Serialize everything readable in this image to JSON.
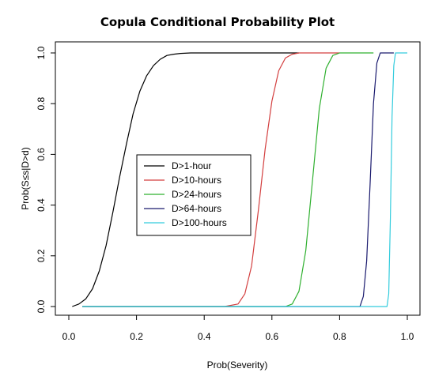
{
  "chart_data": {
    "type": "line",
    "title": "Copula Conditional Probability Plot",
    "xlabel": "Prob(Severity)",
    "ylabel": "Prob(S≤s|D>d)",
    "xlim": [
      0,
      1
    ],
    "ylim": [
      0,
      1
    ],
    "xticks": [
      "0.0",
      "0.2",
      "0.4",
      "0.6",
      "0.8",
      "1.0"
    ],
    "yticks": [
      "0.0",
      "0.2",
      "0.4",
      "0.6",
      "0.8",
      "1.0"
    ],
    "legend_position": "center-left",
    "series": [
      {
        "name": "D>1-hour",
        "color": "#000000",
        "x": [
          0.01,
          0.03,
          0.05,
          0.07,
          0.09,
          0.11,
          0.13,
          0.15,
          0.17,
          0.19,
          0.21,
          0.23,
          0.25,
          0.27,
          0.29,
          0.31,
          0.33,
          0.36,
          0.4,
          0.5,
          0.68
        ],
        "y": [
          0.0,
          0.01,
          0.03,
          0.07,
          0.14,
          0.24,
          0.37,
          0.51,
          0.64,
          0.76,
          0.85,
          0.91,
          0.95,
          0.975,
          0.99,
          0.995,
          0.998,
          1.0,
          1.0,
          1.0,
          1.0
        ]
      },
      {
        "name": "D>10-hours",
        "color": "#d33f3f",
        "x": [
          0.04,
          0.46,
          0.5,
          0.52,
          0.54,
          0.56,
          0.58,
          0.6,
          0.62,
          0.64,
          0.66,
          0.68,
          0.8
        ],
        "y": [
          0.0,
          0.0,
          0.01,
          0.05,
          0.16,
          0.38,
          0.62,
          0.81,
          0.93,
          0.98,
          0.995,
          1.0,
          1.0
        ]
      },
      {
        "name": "D>24-hours",
        "color": "#2fb02f",
        "x": [
          0.04,
          0.64,
          0.66,
          0.68,
          0.7,
          0.72,
          0.74,
          0.76,
          0.78,
          0.8,
          0.9
        ],
        "y": [
          0.0,
          0.0,
          0.01,
          0.06,
          0.22,
          0.5,
          0.78,
          0.94,
          0.99,
          1.0,
          1.0
        ]
      },
      {
        "name": "D>64-hours",
        "color": "#1a1a6e",
        "x": [
          0.04,
          0.86,
          0.87,
          0.88,
          0.89,
          0.9,
          0.91,
          0.92,
          0.96
        ],
        "y": [
          0.0,
          0.0,
          0.04,
          0.18,
          0.48,
          0.8,
          0.96,
          1.0,
          1.0
        ]
      },
      {
        "name": "D>100-hours",
        "color": "#33ccdd",
        "x": [
          0.04,
          0.94,
          0.945,
          0.95,
          0.955,
          0.96,
          0.965,
          1.0
        ],
        "y": [
          0.0,
          0.0,
          0.05,
          0.35,
          0.75,
          0.95,
          1.0,
          1.0
        ]
      }
    ]
  }
}
